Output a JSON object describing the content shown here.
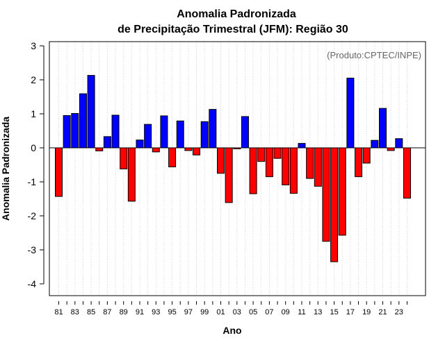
{
  "chart_data": {
    "type": "bar",
    "title": "Anomalia Padronizada",
    "subtitle": "de Precipitação Trimestral (JFM): Região 30",
    "xlabel": "Ano",
    "ylabel": "Anomalia Padronizada",
    "annotation": "(Produto:CPTEC/INPE)",
    "ylim": [
      -4,
      3
    ],
    "yticks": [
      "3",
      "2",
      "1",
      "0",
      "-1",
      "-2",
      "-3",
      "-4"
    ],
    "ytick_values": [
      3,
      2,
      1,
      0,
      -1,
      -2,
      -3,
      -4
    ],
    "xticks": [
      "81",
      "83",
      "85",
      "87",
      "89",
      "91",
      "93",
      "95",
      "97",
      "99",
      "01",
      "03",
      "05",
      "07",
      "09",
      "11",
      "13",
      "15",
      "17",
      "19",
      "21",
      "23"
    ],
    "categories": [
      "1981",
      "1982",
      "1983",
      "1984",
      "1985",
      "1986",
      "1987",
      "1988",
      "1989",
      "1990",
      "1991",
      "1992",
      "1993",
      "1994",
      "1995",
      "1996",
      "1997",
      "1998",
      "1999",
      "2000",
      "2001",
      "2002",
      "2003",
      "2004",
      "2005",
      "2006",
      "2007",
      "2008",
      "2009",
      "2010",
      "2011",
      "2012",
      "2013",
      "2014",
      "2015",
      "2016",
      "2017",
      "2018",
      "2019",
      "2020",
      "2021",
      "2022",
      "2023",
      "2024"
    ],
    "values": [
      -1.43,
      0.95,
      1.01,
      1.59,
      2.13,
      -0.09,
      0.33,
      0.96,
      -0.62,
      -1.57,
      0.23,
      0.69,
      -0.12,
      0.94,
      -0.56,
      0.79,
      -0.08,
      -0.21,
      0.77,
      1.13,
      -0.75,
      -1.61,
      -0.03,
      0.92,
      -1.35,
      -0.4,
      -0.85,
      -0.31,
      -1.09,
      -1.34,
      0.13,
      -0.9,
      -1.13,
      -2.75,
      -3.35,
      -2.57,
      2.05,
      -0.85,
      -0.45,
      0.22,
      1.16,
      -0.08,
      0.27,
      -1.48
    ],
    "colors": {
      "positive": "#0000ff",
      "negative": "#ff0000",
      "grid": "#d3d3d3",
      "axis": "#000000"
    },
    "grid": true,
    "legend": "none"
  }
}
